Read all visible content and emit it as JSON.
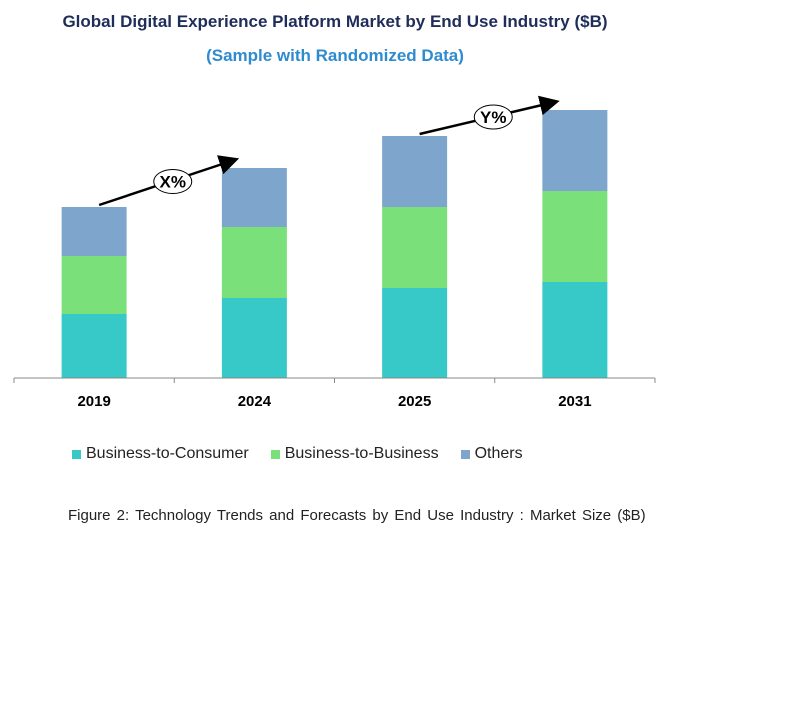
{
  "chart_data": {
    "type": "bar",
    "stacked": true,
    "title": "Global Digital Experience Platform Market by End Use Industry ($B)",
    "subtitle": "(Sample with Randomized Data)",
    "categories": [
      "2019",
      "2024",
      "2025",
      "2031"
    ],
    "series": [
      {
        "name": "Business-to-Consumer",
        "color": "#37c8c8",
        "values": [
          64,
          80,
          90,
          96
        ]
      },
      {
        "name": "Business-to-Business",
        "color": "#7ae07a",
        "values": [
          58,
          71,
          81,
          91
        ]
      },
      {
        "name": "Others",
        "color": "#7ea6cc",
        "values": [
          49,
          59,
          71,
          81
        ]
      }
    ],
    "ylim": [
      0,
      300
    ],
    "grid": false,
    "legend_position": "bottom",
    "annotations": [
      {
        "label": "X%",
        "from": "2019",
        "to": "2024"
      },
      {
        "label": "Y%",
        "from": "2025",
        "to": "2031"
      }
    ]
  },
  "caption": "Figure 2: Technology  Trends  and Forecasts by  End Use Industry   : Market Size ($B)"
}
